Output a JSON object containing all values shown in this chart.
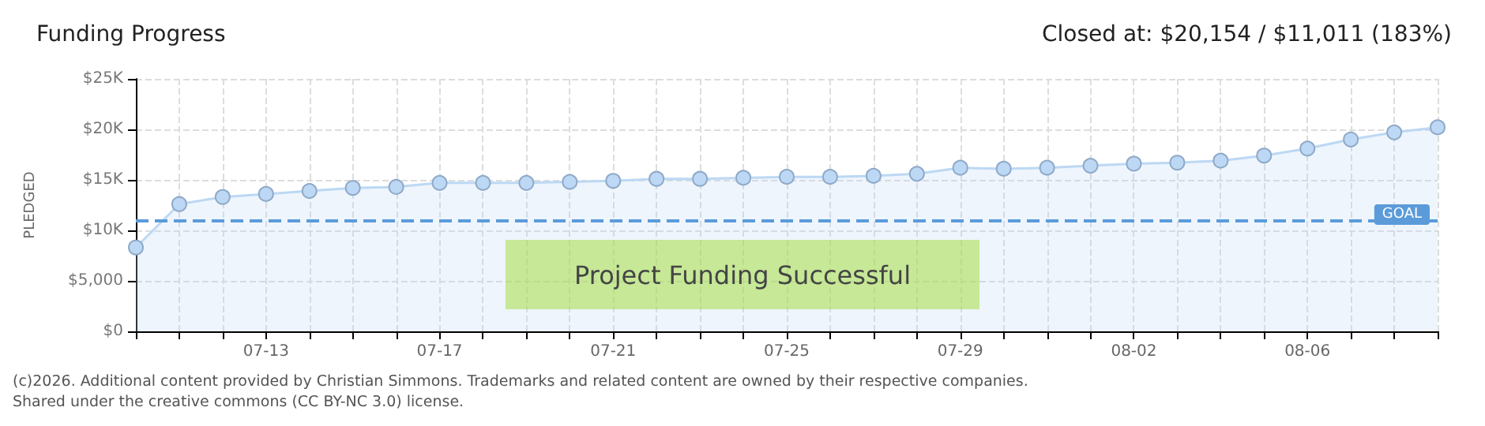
{
  "chart_data": {
    "type": "area",
    "title": "Funding Progress",
    "subtitle": "Closed at: $20,154 / $11,011 (183%)",
    "ylabel": "PLEDGED",
    "categories": [
      null,
      null,
      null,
      "07-13",
      null,
      null,
      null,
      "07-17",
      null,
      null,
      null,
      "07-21",
      null,
      null,
      null,
      "07-25",
      null,
      null,
      null,
      "07-29",
      null,
      null,
      null,
      "08-02",
      null,
      null,
      null,
      "08-06",
      null,
      null,
      null
    ],
    "series": [
      {
        "color": "#bcd8f4",
        "values": [
          8300,
          12600,
          13300,
          13600,
          13900,
          14200,
          14300,
          14700,
          14700,
          14700,
          14800,
          14900,
          15100,
          15100,
          15200,
          15300,
          15300,
          15400,
          15600,
          16200,
          16100,
          16200,
          16400,
          16600,
          16700,
          16900,
          17400,
          18100,
          19000,
          19700,
          20200
        ]
      }
    ],
    "ylim": [
      0,
      25000
    ],
    "yticks": [
      {
        "value": 0,
        "label": "$0"
      },
      {
        "value": 5000,
        "label": "$5,000"
      },
      {
        "value": 10000,
        "label": "$10K"
      },
      {
        "value": 15000,
        "label": "$15K"
      },
      {
        "value": 20000,
        "label": "$20K"
      },
      {
        "value": 25000,
        "label": "$25K"
      }
    ],
    "ref_lines": [
      {
        "axis": "y",
        "value": 11011,
        "label": "GOAL",
        "color": "#5b9bd9",
        "line_style": "dashed"
      }
    ],
    "annotations": [
      "Project Funding Successful",
      "(c)2026. Additional content provided by Christian Simmons. Trademarks and related content are owned by their respective companies.",
      "Shared under the creative commons (CC BY-NC 3.0) license."
    ],
    "grid": true,
    "marker": "circle"
  }
}
